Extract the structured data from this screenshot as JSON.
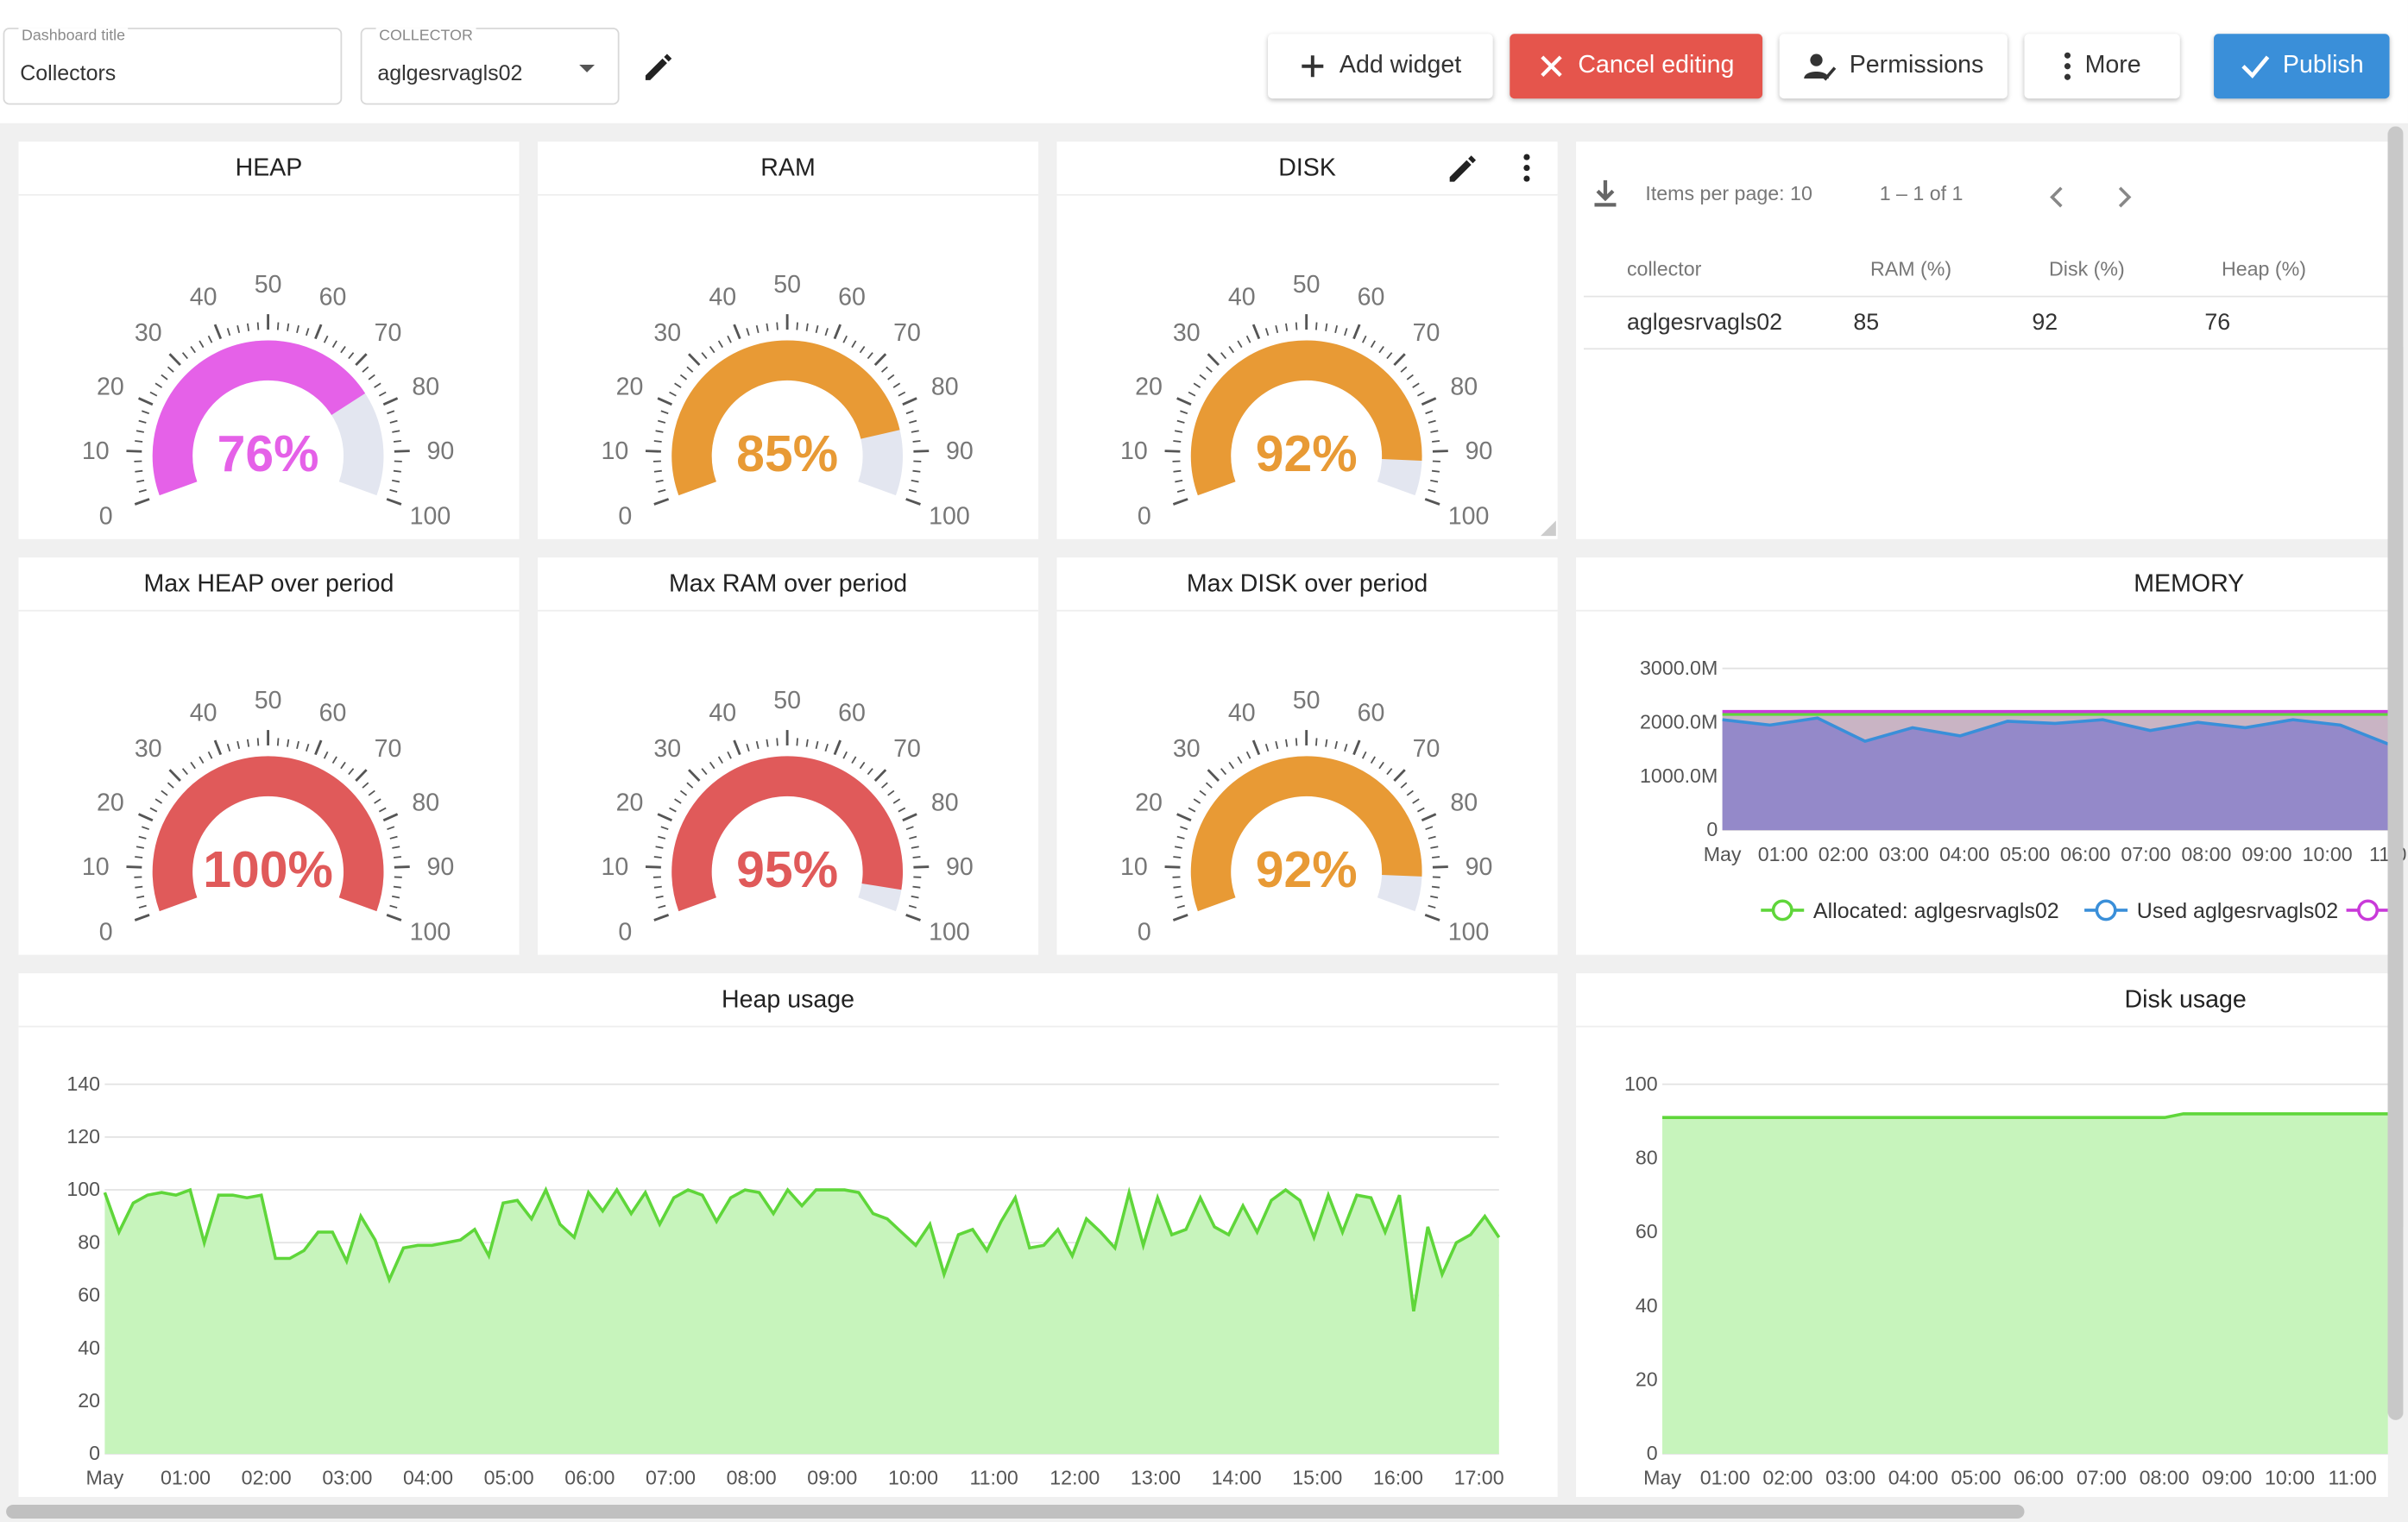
{
  "toolbar": {
    "dashboard_title_label": "Dashboard title",
    "dashboard_title_value": "Collectors",
    "collector_label": "COLLECTOR",
    "collector_value": "aglgesrvagls02",
    "add_widget": "Add widget",
    "cancel_editing": "Cancel editing",
    "permissions": "Permissions",
    "more": "More",
    "publish": "Publish"
  },
  "gauges": [
    {
      "title": "HEAP",
      "value": 76,
      "label": "76%",
      "color": "#e561e8"
    },
    {
      "title": "RAM",
      "value": 85,
      "label": "85%",
      "color": "#e89a35"
    },
    {
      "title": "DISK",
      "value": 92,
      "label": "92%",
      "color": "#e89a35"
    },
    {
      "title": "Max HEAP over period",
      "value": 100,
      "label": "100%",
      "color": "#e05a5a"
    },
    {
      "title": "Max RAM over period",
      "value": 95,
      "label": "95%",
      "color": "#e05a5a"
    },
    {
      "title": "Max DISK over period",
      "value": 92,
      "label": "92%",
      "color": "#e89a35"
    }
  ],
  "gauge_scale": [
    "0",
    "10",
    "20",
    "30",
    "40",
    "50",
    "60",
    "70",
    "80",
    "90",
    "100"
  ],
  "table": {
    "items_per_page": "Items per page: 10",
    "range": "1 – 1 of 1",
    "columns": [
      "collector",
      "RAM (%)",
      "Disk (%)",
      "Heap (%)"
    ],
    "rows": [
      [
        "aglgesrvagls02",
        "85",
        "92",
        "76"
      ]
    ]
  },
  "memory": {
    "title": "MEMORY",
    "legend": [
      "Allocated: aglgesrvagls02",
      "Used aglgesrvagls02"
    ],
    "legend_colors": [
      "#5fd63a",
      "#3a8fd9",
      "#c93ad9"
    ]
  },
  "heap_usage": {
    "title": "Heap usage"
  },
  "disk_usage": {
    "title": "Disk usage"
  },
  "chart_data": [
    {
      "type": "line",
      "title": "MEMORY",
      "y_tick_labels": [
        "0",
        "1000.0M",
        "2000.0M",
        "3000.0M"
      ],
      "x_tick_labels": [
        "May",
        "01:00",
        "02:00",
        "03:00",
        "04:00",
        "05:00",
        "06:00",
        "07:00",
        "08:00",
        "09:00",
        "10:00",
        "11:0"
      ],
      "ylim": [
        0,
        3000
      ],
      "series": [
        {
          "name": "Allocated: aglgesrvagls02",
          "color": "#5fd63a",
          "values": [
            2150,
            2150,
            2150,
            2150,
            2150,
            2150,
            2150,
            2150,
            2150,
            2150,
            2150,
            2150
          ]
        },
        {
          "name": "Used aglgesrvagls02",
          "color": "#3a8fd9",
          "values": [
            2050,
            1950,
            2080,
            1650,
            1900,
            1750,
            2020,
            1980,
            2050,
            1850,
            2000,
            1900,
            2050,
            1950,
            1600
          ]
        },
        {
          "color": "#c93ad9",
          "values": [
            2200,
            2200,
            2200,
            2200,
            2200,
            2200,
            2200,
            2200,
            2200,
            2200,
            2200,
            2200
          ]
        }
      ]
    },
    {
      "type": "area",
      "title": "Heap usage",
      "x_tick_labels": [
        "May",
        "01:00",
        "02:00",
        "03:00",
        "04:00",
        "05:00",
        "06:00",
        "07:00",
        "08:00",
        "09:00",
        "10:00",
        "11:00",
        "12:00",
        "13:00",
        "14:00",
        "15:00",
        "16:00",
        "17:00"
      ],
      "y_tick_labels": [
        "0",
        "20",
        "40",
        "60",
        "80",
        "100",
        "120",
        "140"
      ],
      "ylim": [
        0,
        140
      ],
      "series": [
        {
          "color": "#5fd63a",
          "values": [
            99,
            84,
            95,
            98,
            99,
            98,
            100,
            80,
            98,
            98,
            97,
            98,
            74,
            74,
            77,
            84,
            84,
            73,
            90,
            81,
            66,
            78,
            79,
            79,
            80,
            81,
            85,
            75,
            95,
            96,
            89,
            100,
            87,
            82,
            99,
            92,
            100,
            91,
            99,
            87,
            97,
            100,
            98,
            88,
            97,
            100,
            99,
            91,
            100,
            94,
            100,
            100,
            100,
            99,
            91,
            89,
            84,
            79,
            87,
            68,
            83,
            85,
            77,
            88,
            97,
            78,
            79,
            85,
            75,
            89,
            84,
            78,
            99,
            79,
            97,
            83,
            85,
            97,
            86,
            83,
            94,
            84,
            96,
            100,
            96,
            82,
            98,
            84,
            98,
            97,
            84,
            98,
            54,
            86,
            68,
            80,
            83,
            90,
            82
          ]
        }
      ]
    },
    {
      "type": "area",
      "title": "Disk usage",
      "x_tick_labels": [
        "May",
        "01:00",
        "02:00",
        "03:00",
        "04:00",
        "05:00",
        "06:00",
        "07:00",
        "08:00",
        "09:00",
        "10:00",
        "11:00"
      ],
      "y_tick_labels": [
        "0",
        "20",
        "40",
        "60",
        "80",
        "100"
      ],
      "ylim": [
        0,
        100
      ],
      "series": [
        {
          "color": "#5fd63a",
          "values": [
            91,
            91,
            91,
            91,
            91,
            91,
            91,
            91,
            91,
            91,
            91,
            91,
            91,
            91,
            91,
            91,
            91,
            91,
            91,
            91,
            91,
            91,
            91,
            91,
            91,
            91,
            91,
            91,
            92,
            92,
            92,
            92,
            92,
            92,
            92,
            92,
            92,
            92,
            92,
            92
          ]
        }
      ]
    }
  ]
}
